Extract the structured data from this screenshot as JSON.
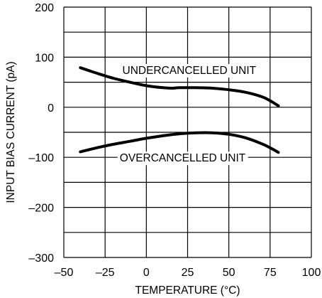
{
  "chart_data": {
    "type": "line",
    "title": "",
    "xlabel": "TEMPERATURE (°C)",
    "ylabel": "INPUT BIAS CURRENT (pA)",
    "xlim": [
      -50,
      100
    ],
    "ylim": [
      -300,
      200
    ],
    "xticks": [
      -50,
      -25,
      0,
      25,
      50,
      75,
      100
    ],
    "yticks": [
      -300,
      -200,
      -100,
      0,
      100,
      200
    ],
    "xtick_labels": [
      "–50",
      "–25",
      "0",
      "25",
      "50",
      "75",
      "100"
    ],
    "ytick_labels": [
      "–300",
      "–200",
      "–100",
      "0",
      "100",
      "200"
    ],
    "grid": true,
    "x_grid_step": 25,
    "y_grid_step": 50,
    "series": [
      {
        "name": "UNDERCANCELLED UNIT",
        "x": [
          -40,
          -30,
          -20,
          -10,
          0,
          10,
          15,
          20,
          30,
          40,
          50,
          60,
          70,
          75,
          80
        ],
        "y": [
          79,
          68,
          58,
          50,
          43,
          39,
          38,
          39,
          39,
          38,
          35,
          30,
          21,
          13,
          3
        ]
      },
      {
        "name": "OVERCANCELLED UNIT",
        "x": [
          -40,
          -30,
          -20,
          -10,
          0,
          10,
          20,
          30,
          40,
          50,
          60,
          70,
          75,
          80
        ],
        "y": [
          -89,
          -81,
          -74,
          -68,
          -62,
          -57,
          -53,
          -51,
          -51,
          -54,
          -61,
          -73,
          -81,
          -90
        ]
      }
    ],
    "annotations": [
      {
        "text": "UNDERCANCELLED UNIT",
        "x": 26,
        "y": 75
      },
      {
        "text": "OVERCANCELLED UNIT",
        "x": 22,
        "y": -100
      }
    ]
  }
}
